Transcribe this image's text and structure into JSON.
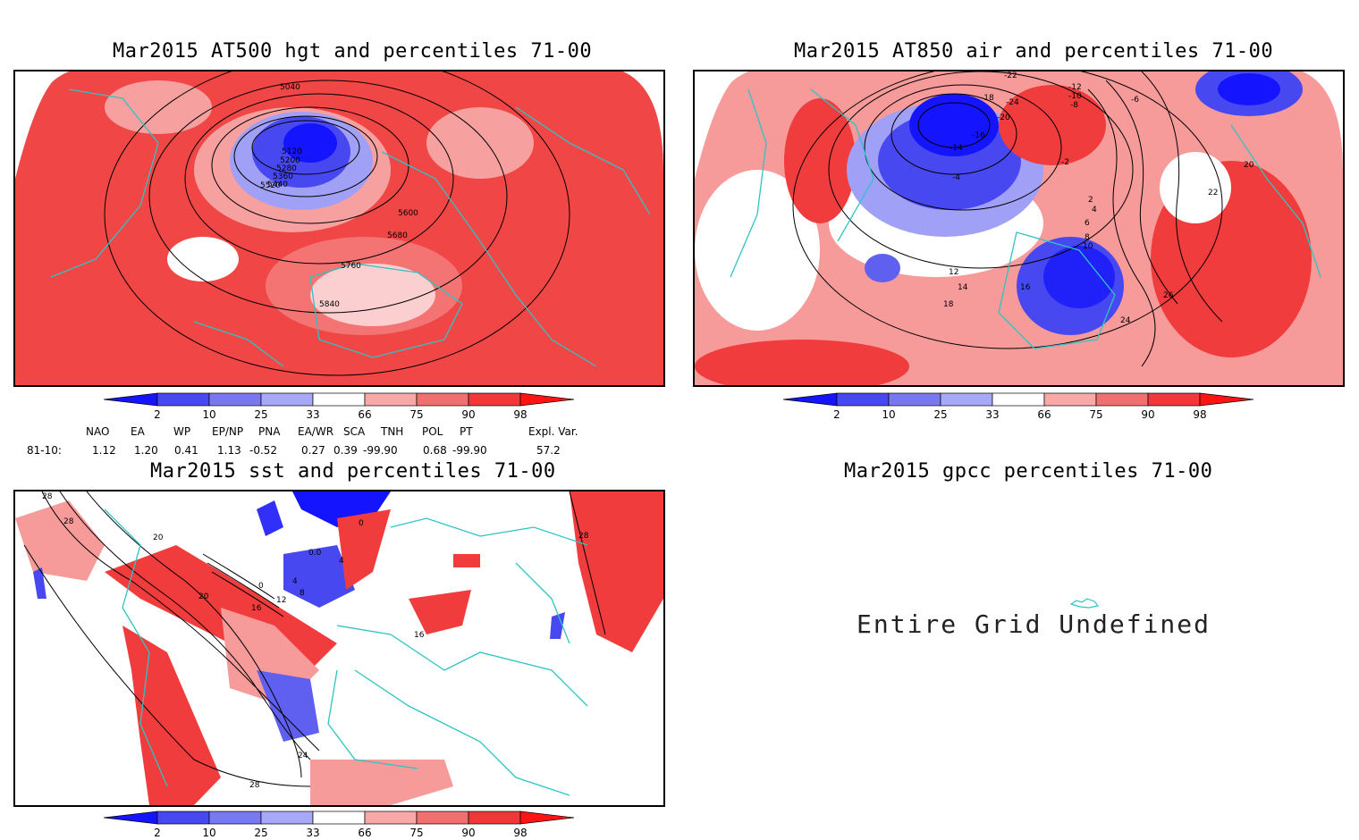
{
  "panels": {
    "hgt": {
      "title": "Mar2015 AT500 hgt and percentiles 71-00",
      "contours": [
        "5040",
        "5120",
        "5200",
        "5280",
        "5360",
        "5440",
        "5520",
        "5600",
        "5680",
        "5760",
        "5840"
      ]
    },
    "air": {
      "title": "Mar2015 AT850 air and percentiles 71-00",
      "contours": [
        "-22",
        "-18",
        "-24",
        "-10",
        "-12",
        "-8",
        "-6",
        "-20",
        "-16",
        "-14",
        "-4",
        "-2",
        "2",
        "4",
        "6",
        "8",
        "10",
        "12",
        "14",
        "16",
        "18",
        "20",
        "22",
        "24",
        "26"
      ]
    },
    "sst": {
      "title": "Mar2015 sst and percentiles 71-00",
      "contours": [
        "28",
        "20",
        "0",
        "4",
        "8",
        "12",
        "16",
        "24",
        "0.0"
      ]
    },
    "gpcc": {
      "title": "Mar2015 gpcc percentiles 71-00",
      "message": "Entire Grid Undefined"
    }
  },
  "colorbar": {
    "labels": [
      "2",
      "10",
      "25",
      "33",
      "66",
      "75",
      "90",
      "98"
    ],
    "colors": [
      "#1414ff",
      "#4848f0",
      "#7878f0",
      "#a8a8f8",
      "#ffffff",
      "#f8a8a8",
      "#f07070",
      "#f03838",
      "#ff1414"
    ]
  },
  "indices": {
    "headers": [
      "NAO",
      "EA",
      "WP",
      "EP/NP",
      "PNA",
      "EA/WR",
      "SCA",
      "TNH",
      "POL",
      "PT",
      "Expl. Var."
    ],
    "row_label": "81-10:",
    "values": [
      "1.12",
      "1.20",
      "0.41",
      "1.13",
      "-0.52",
      "0.27",
      "0.39",
      "-99.90",
      "0.68",
      "-99.90",
      "57.2"
    ]
  },
  "colors": {
    "land_outline": "#2ec4c4",
    "contour": "#000000",
    "warm": "#f03c3c",
    "warm_light": "#f79a9a",
    "cold": "#3c3cf0",
    "cold_light": "#9a9af7"
  }
}
